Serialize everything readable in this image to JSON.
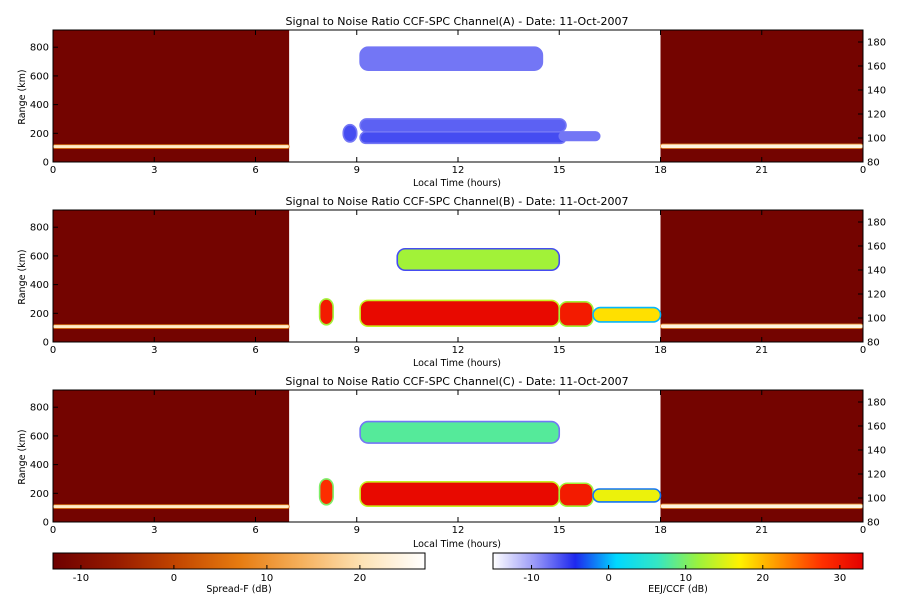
{
  "chart_data": [
    {
      "type": "heatmap",
      "title": "Signal to Noise Ratio CCF-SPC Channel(A) - Date: 11-Oct-2007",
      "xlabel": "Local Time (hours)",
      "ylabel": "Range (km)",
      "xlim": [
        0,
        24
      ],
      "x_tick_labels": [
        "0",
        "3",
        "6",
        "9",
        "12",
        "15",
        "18",
        "21",
        "0"
      ],
      "ylim": [
        0,
        920
      ],
      "y_ticks": [
        0,
        200,
        400,
        600,
        800
      ],
      "right_ylim": [
        80,
        190
      ],
      "right_y_ticks": [
        80,
        100,
        120,
        140,
        160,
        180
      ],
      "regions": [
        {
          "scale": "Spread-F",
          "x": [
            0,
            7
          ],
          "background_dB": -12
        },
        {
          "scale": "EEJ/CCF",
          "x": [
            7,
            18
          ],
          "background_dB": null
        },
        {
          "scale": "Spread-F",
          "x": [
            18,
            24
          ],
          "background_dB": -12
        }
      ],
      "echoes": [
        {
          "scale": "Spread-F",
          "x": [
            0,
            7
          ],
          "y": [
            95,
            120
          ],
          "peak_dB": 22
        },
        {
          "scale": "Spread-F",
          "x": [
            18,
            24
          ],
          "y": [
            95,
            125
          ],
          "peak_dB": 24
        },
        {
          "scale": "EEJ/CCF",
          "x": [
            8.6,
            9.0
          ],
          "y": [
            140,
            260
          ],
          "peak_dB": -6
        },
        {
          "scale": "EEJ/CCF",
          "x": [
            9.1,
            14.5
          ],
          "y": [
            640,
            800
          ],
          "peak_dB": -8
        },
        {
          "scale": "EEJ/CCF",
          "x": [
            9.1,
            15.2
          ],
          "y": [
            210,
            300
          ],
          "peak_dB": -7
        },
        {
          "scale": "EEJ/CCF",
          "x": [
            9.1,
            15.2
          ],
          "y": [
            130,
            210
          ],
          "peak_dB": -6
        },
        {
          "scale": "EEJ/CCF",
          "x": [
            15.0,
            16.2
          ],
          "y": [
            150,
            210
          ],
          "peak_dB": -8
        }
      ]
    },
    {
      "type": "heatmap",
      "title": "Signal to Noise Ratio CCF-SPC Channel(B) - Date: 11-Oct-2007",
      "xlabel": "Local Time (hours)",
      "ylabel": "Range (km)",
      "xlim": [
        0,
        24
      ],
      "x_tick_labels": [
        "0",
        "3",
        "6",
        "9",
        "12",
        "15",
        "18",
        "21",
        "0"
      ],
      "ylim": [
        0,
        920
      ],
      "y_ticks": [
        0,
        200,
        400,
        600,
        800
      ],
      "right_ylim": [
        80,
        190
      ],
      "right_y_ticks": [
        80,
        100,
        120,
        140,
        160,
        180
      ],
      "regions": [
        {
          "scale": "Spread-F",
          "x": [
            0,
            7
          ],
          "background_dB": -12
        },
        {
          "scale": "EEJ/CCF",
          "x": [
            7,
            18
          ],
          "background_dB": null
        },
        {
          "scale": "Spread-F",
          "x": [
            18,
            24
          ],
          "background_dB": -12
        }
      ],
      "echoes": [
        {
          "scale": "Spread-F",
          "x": [
            0,
            7
          ],
          "y": [
            95,
            120
          ],
          "peak_dB": 22
        },
        {
          "scale": "Spread-F",
          "x": [
            18,
            24
          ],
          "y": [
            95,
            125
          ],
          "peak_dB": 24
        },
        {
          "scale": "EEJ/CCF",
          "x": [
            7.9,
            8.3
          ],
          "y": [
            120,
            300
          ],
          "peak_dB": 30
        },
        {
          "scale": "EEJ/CCF",
          "x": [
            9.1,
            15.0
          ],
          "y": [
            110,
            290
          ],
          "peak_dB": 32
        },
        {
          "scale": "EEJ/CCF",
          "x": [
            15.0,
            16.0
          ],
          "y": [
            110,
            280
          ],
          "peak_dB": 30
        },
        {
          "scale": "EEJ/CCF",
          "x": [
            16.0,
            18.0
          ],
          "y": [
            140,
            240
          ],
          "peak_dB": 18
        },
        {
          "scale": "EEJ/CCF",
          "x": [
            10.2,
            15.0
          ],
          "y": [
            500,
            650
          ],
          "peak_dB": 12
        }
      ]
    },
    {
      "type": "heatmap",
      "title": "Signal to Noise Ratio CCF-SPC Channel(C) - Date: 11-Oct-2007",
      "xlabel": "Local Time (hours)",
      "ylabel": "Range (km)",
      "xlim": [
        0,
        24
      ],
      "x_tick_labels": [
        "0",
        "3",
        "6",
        "9",
        "12",
        "15",
        "18",
        "21",
        "0"
      ],
      "ylim": [
        0,
        920
      ],
      "y_ticks": [
        0,
        200,
        400,
        600,
        800
      ],
      "right_ylim": [
        80,
        190
      ],
      "right_y_ticks": [
        80,
        100,
        120,
        140,
        160,
        180
      ],
      "regions": [
        {
          "scale": "Spread-F",
          "x": [
            0,
            7
          ],
          "background_dB": -12
        },
        {
          "scale": "EEJ/CCF",
          "x": [
            7,
            18
          ],
          "background_dB": null
        },
        {
          "scale": "Spread-F",
          "x": [
            18,
            24
          ],
          "background_dB": -12
        }
      ],
      "echoes": [
        {
          "scale": "Spread-F",
          "x": [
            0,
            7
          ],
          "y": [
            95,
            120
          ],
          "peak_dB": 22
        },
        {
          "scale": "Spread-F",
          "x": [
            18,
            24
          ],
          "y": [
            95,
            125
          ],
          "peak_dB": 24
        },
        {
          "scale": "EEJ/CCF",
          "x": [
            7.9,
            8.3
          ],
          "y": [
            120,
            300
          ],
          "peak_dB": 28
        },
        {
          "scale": "EEJ/CCF",
          "x": [
            9.1,
            15.0
          ],
          "y": [
            110,
            280
          ],
          "peak_dB": 32
        },
        {
          "scale": "EEJ/CCF",
          "x": [
            15.0,
            16.0
          ],
          "y": [
            110,
            270
          ],
          "peak_dB": 30
        },
        {
          "scale": "EEJ/CCF",
          "x": [
            16.0,
            18.0
          ],
          "y": [
            140,
            230
          ],
          "peak_dB": 16
        },
        {
          "scale": "EEJ/CCF",
          "x": [
            9.1,
            15.0
          ],
          "y": [
            550,
            700
          ],
          "peak_dB": 8
        }
      ]
    }
  ],
  "colorbars": [
    {
      "label": "Spread-F (dB)",
      "range": [
        -13,
        27
      ],
      "tick_values": [
        -10,
        0,
        10,
        20
      ],
      "tick_labels": [
        "-10",
        "0",
        "10",
        "20"
      ],
      "stops": [
        "#6e0000",
        "#961a00",
        "#c34600",
        "#e67b10",
        "#f6b05c",
        "#fde3b6",
        "#ffffff"
      ]
    },
    {
      "label": "EEJ/CCF (dB)",
      "range": [
        -15,
        33
      ],
      "tick_values": [
        -10,
        0,
        10,
        20,
        30
      ],
      "tick_labels": [
        "-10",
        "0",
        "10",
        "20",
        "30"
      ],
      "stops": [
        "#ffffff",
        "#9a9af8",
        "#1e28ee",
        "#00d8ff",
        "#34e6c4",
        "#9cf23c",
        "#fff200",
        "#ff9000",
        "#ff3000",
        "#e30000"
      ]
    }
  ]
}
